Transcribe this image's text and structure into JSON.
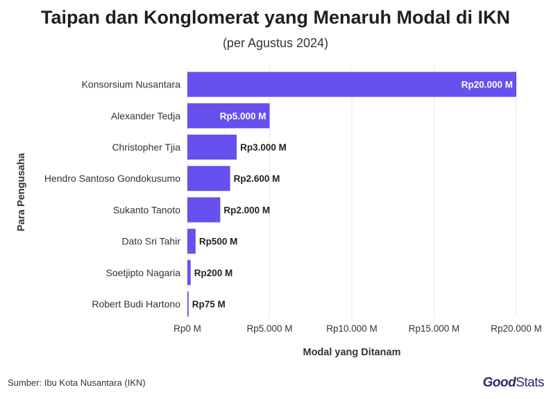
{
  "chart_data": {
    "type": "bar",
    "orientation": "horizontal",
    "title": "Taipan dan Konglomerat yang Menaruh Modal di IKN",
    "subtitle": "(per Agustus 2024)",
    "xlabel": "Modal yang Ditanam",
    "ylabel": "Para Pengusaha",
    "categories": [
      "Konsorsium Nusantara",
      "Alexander Tedja",
      "Christopher Tjia",
      "Hendro Santoso Gondokusumo",
      "Sukanto Tanoto",
      "Dato Sri Tahir",
      "Soetjipto Nagaria",
      "Robert Budi Hartono"
    ],
    "values": [
      20000,
      5000,
      3000,
      2600,
      2000,
      500,
      200,
      75
    ],
    "data_labels": [
      "Rp20.000 M",
      "Rp5.000 M",
      "Rp3.000 M",
      "Rp2.600 M",
      "Rp2.000 M",
      "Rp500 M",
      "Rp200 M",
      "Rp75 M"
    ],
    "xlim": [
      0,
      20000
    ],
    "xticks": [
      0,
      5000,
      10000,
      15000,
      20000
    ],
    "xtick_labels": [
      "Rp0 M",
      "Rp5.000 M",
      "Rp10.000 M",
      "Rp15.000 M",
      "Rp20.000 M"
    ],
    "grid": true,
    "bar_color": "#6650EE"
  },
  "footer": {
    "source": "Sumber: Ibu Kota Nusantara (IKN)",
    "logo_good": "Good",
    "logo_stats": "Stats"
  }
}
